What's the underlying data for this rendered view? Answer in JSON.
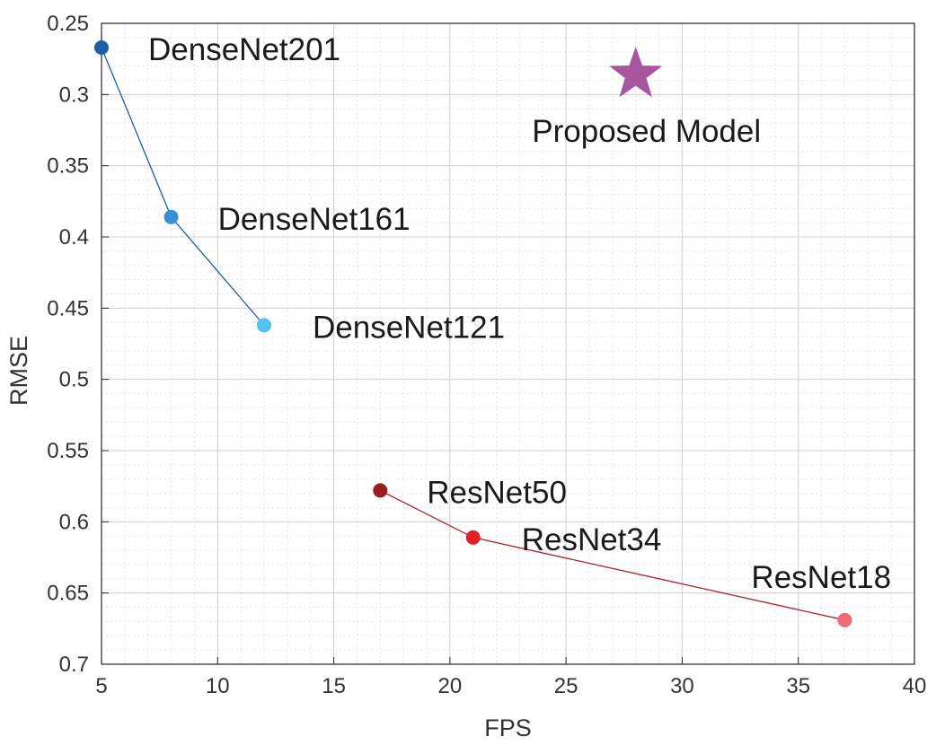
{
  "chart_data": {
    "type": "scatter",
    "xlabel": "FPS",
    "ylabel": "RMSE",
    "xlim": [
      5,
      40
    ],
    "ylim": [
      0.25,
      0.7
    ],
    "y_reversed": true,
    "grid": true,
    "minor_grid": true,
    "xticks": [
      5,
      10,
      15,
      20,
      25,
      30,
      35,
      40
    ],
    "yticks": [
      0.25,
      0.3,
      0.35,
      0.4,
      0.45,
      0.5,
      0.55,
      0.6,
      0.65,
      0.7
    ],
    "series": [
      {
        "line_color": "#1f5ea8",
        "points": [
          {
            "label": "DenseNet201",
            "x": 5,
            "y": 0.267,
            "color": "#1f5ea8"
          },
          {
            "label": "DenseNet161",
            "x": 8,
            "y": 0.386,
            "color": "#3a8fd6"
          },
          {
            "label": "DenseNet121",
            "x": 12,
            "y": 0.462,
            "color": "#4fc3f2"
          }
        ]
      },
      {
        "line_color": "#b01e28",
        "points": [
          {
            "label": "ResNet50",
            "x": 17,
            "y": 0.578,
            "color": "#9b1c22"
          },
          {
            "label": "ResNet34",
            "x": 21,
            "y": 0.611,
            "color": "#e41e26"
          },
          {
            "label": "ResNet18",
            "x": 37,
            "y": 0.669,
            "color": "#ee6b73"
          }
        ]
      }
    ],
    "highlight": {
      "label": "Proposed Model",
      "x": 28,
      "y": 0.286,
      "marker": "star",
      "color": "#a7559e"
    }
  }
}
